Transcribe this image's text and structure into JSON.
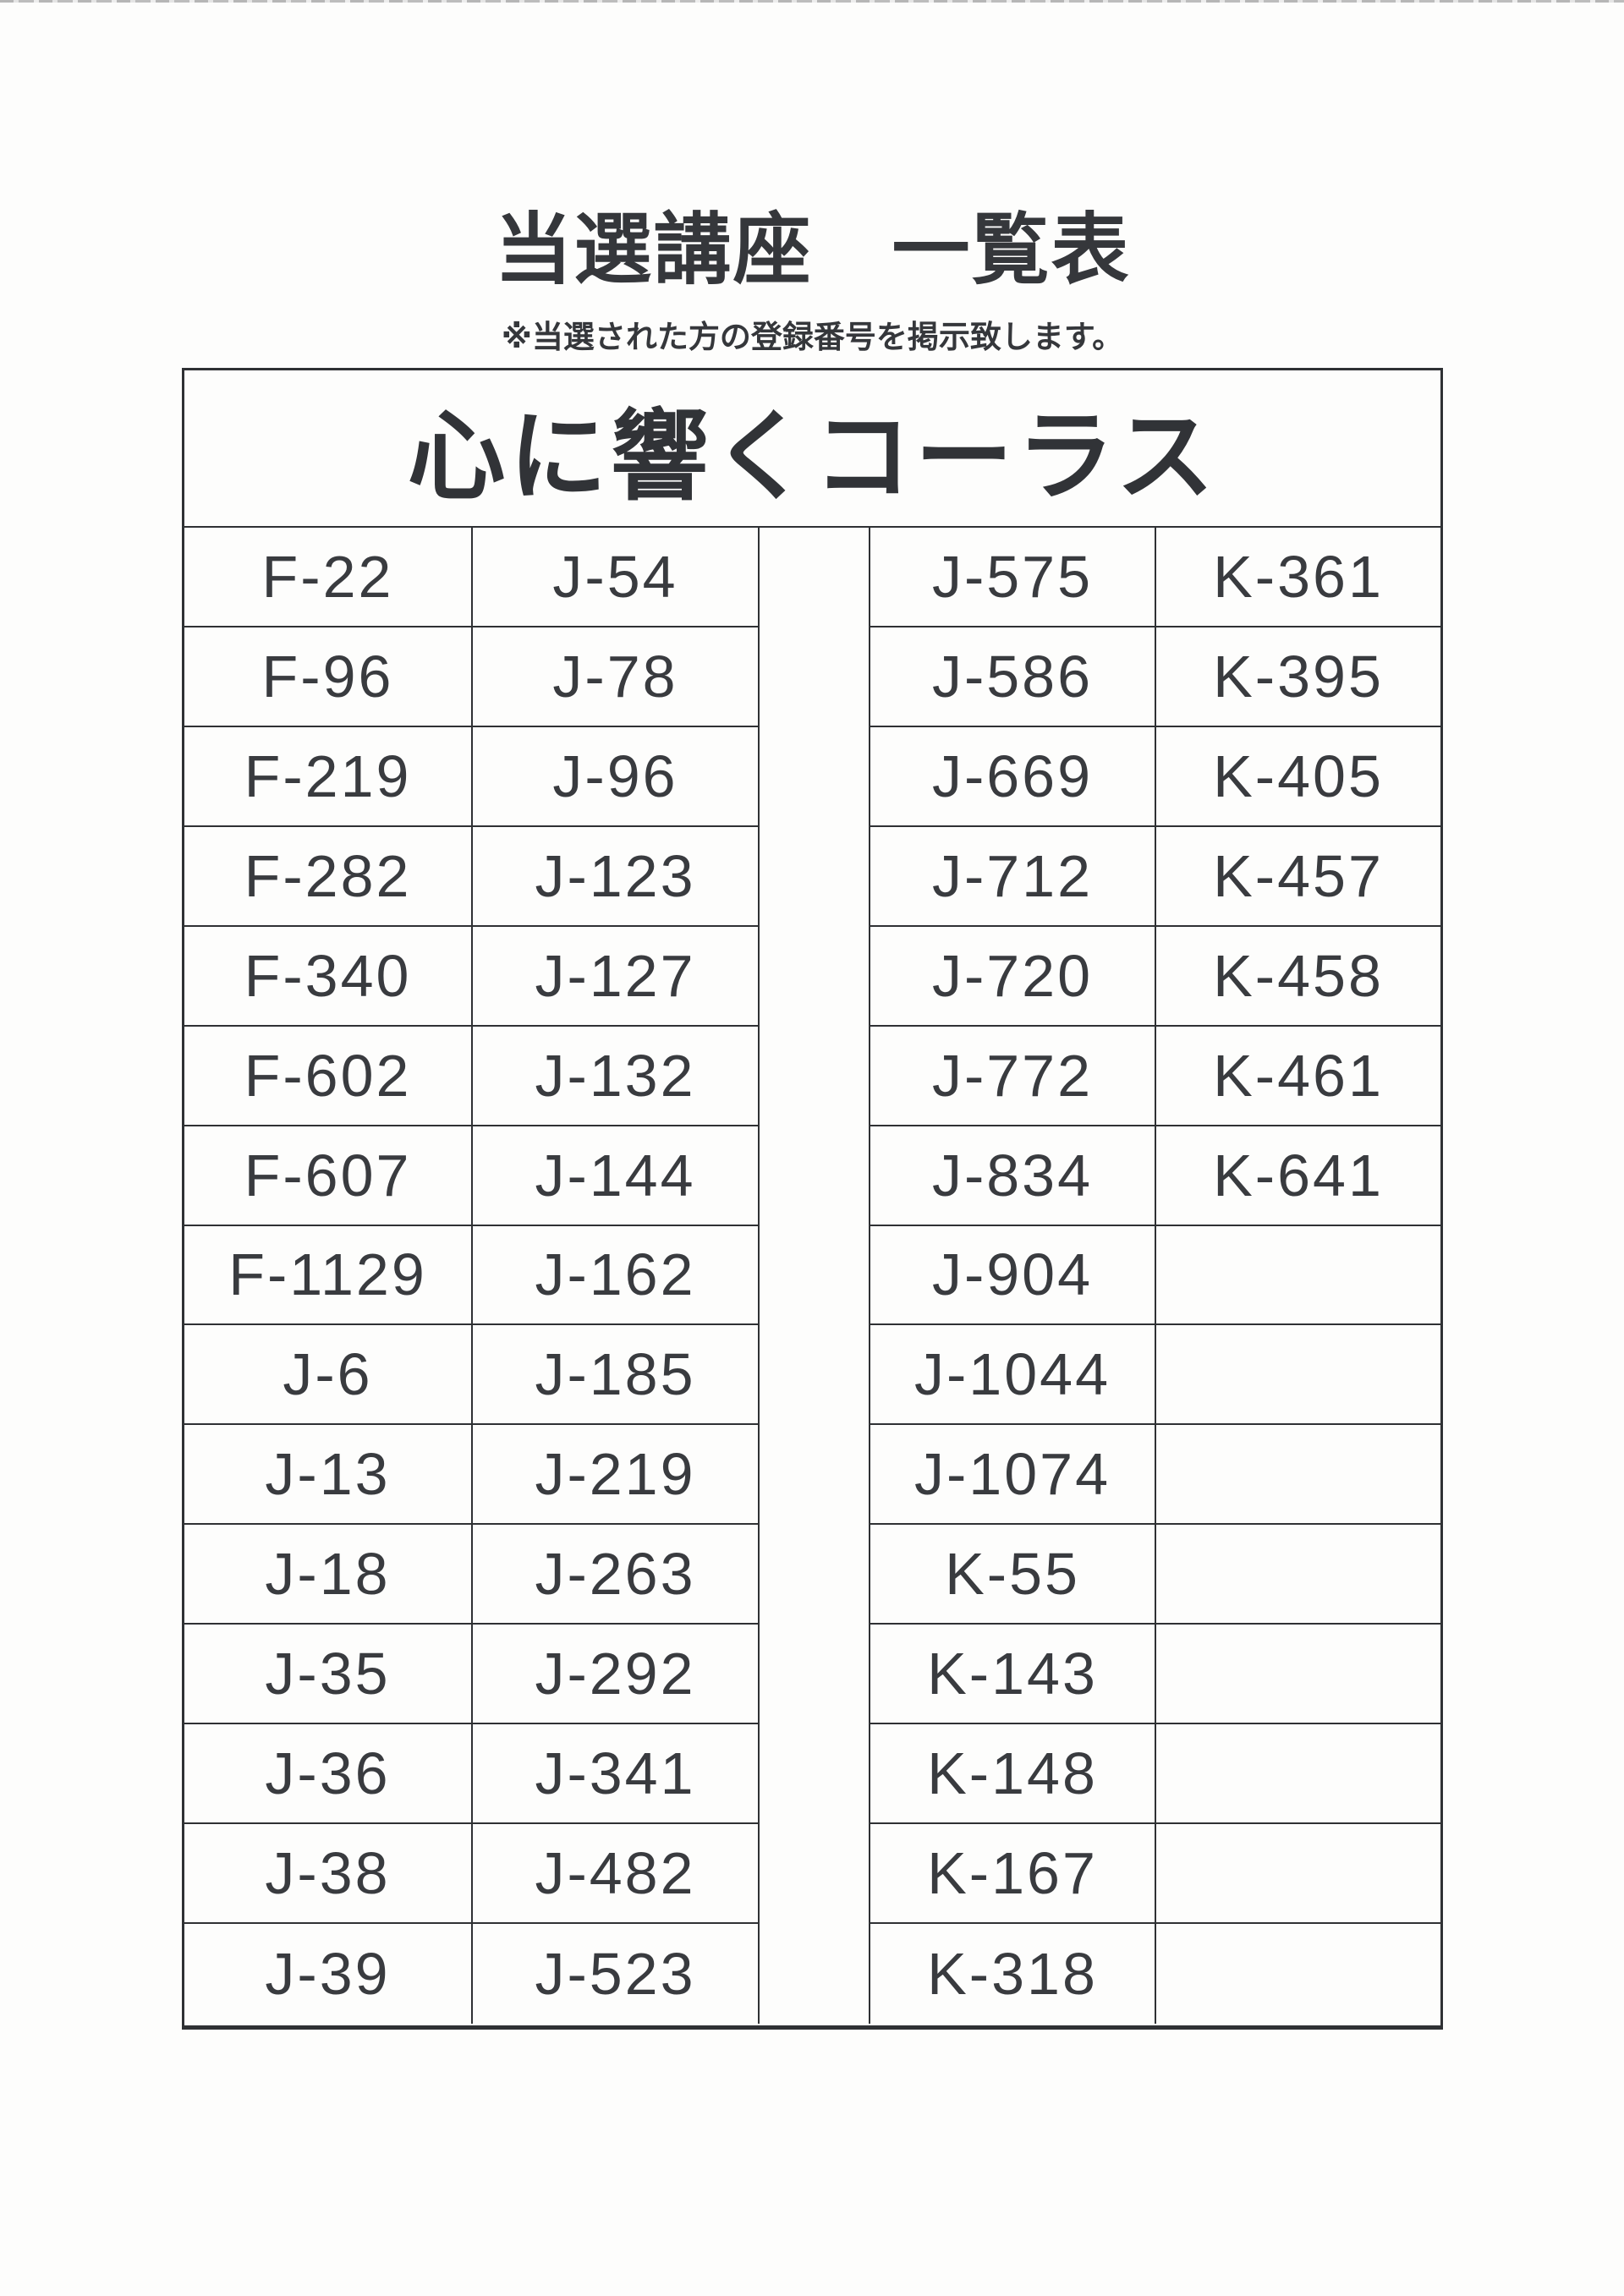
{
  "page": {
    "title": "当選講座　一覧表",
    "subtitle": "※当選された方の登録番号を掲示致します。"
  },
  "table": {
    "header": "心に響くコーラス",
    "row_count": 15,
    "columns": [
      {
        "cells": [
          "F-22",
          "F-96",
          "F-219",
          "F-282",
          "F-340",
          "F-602",
          "F-607",
          "F-1129",
          "J-6",
          "J-13",
          "J-18",
          "J-35",
          "J-36",
          "J-38",
          "J-39"
        ]
      },
      {
        "cells": [
          "J-54",
          "J-78",
          "J-96",
          "J-123",
          "J-127",
          "J-132",
          "J-144",
          "J-162",
          "J-185",
          "J-219",
          "J-263",
          "J-292",
          "J-341",
          "J-482",
          "J-523"
        ]
      },
      {
        "cells": [
          "J-575",
          "J-586",
          "J-669",
          "J-712",
          "J-720",
          "J-772",
          "J-834",
          "J-904",
          "J-1044",
          "J-1074",
          "K-55",
          "K-143",
          "K-148",
          "K-167",
          "K-318"
        ]
      },
      {
        "cells": [
          "K-361",
          "K-395",
          "K-405",
          "K-457",
          "K-458",
          "K-461",
          "K-641",
          "",
          "",
          "",
          "",
          "",
          "",
          "",
          ""
        ]
      }
    ]
  },
  "colors": {
    "ink": "#393b3f",
    "border": "#2f3134",
    "paper": "#fdfdfc"
  }
}
